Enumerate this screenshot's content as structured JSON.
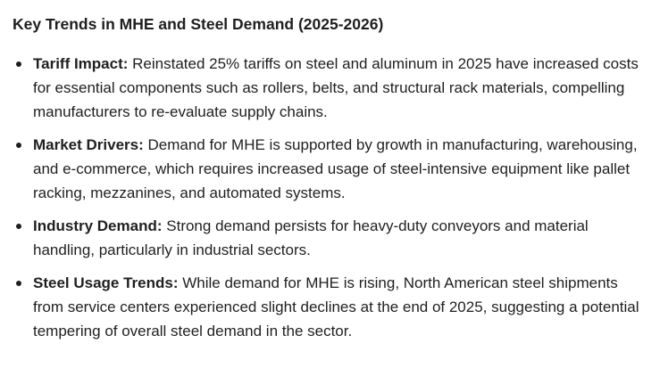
{
  "document": {
    "heading": "Key Trends in MHE and Steel Demand (2025-2026)",
    "items": [
      {
        "term": "Tariff Impact:",
        "text": " Reinstated 25% tariffs on steel and aluminum in 2025 have increased costs for essential components such as rollers, belts, and structural rack materials, compelling manufacturers to re-evaluate supply chains."
      },
      {
        "term": "Market Drivers:",
        "text": " Demand for MHE is supported by growth in manufacturing, warehousing, and e-commerce, which requires increased usage of steel-intensive equipment like pallet racking, mezzanines, and automated systems."
      },
      {
        "term": "Industry Demand:",
        "text": " Strong demand persists for heavy-duty conveyors and material handling, particularly in industrial sectors."
      },
      {
        "term": "Steel Usage Trends:",
        "text": " While demand for MHE is rising, North American steel shipments from service centers experienced slight declines at the end of 2025, suggesting a potential tempering of overall steel demand in the sector."
      }
    ]
  }
}
